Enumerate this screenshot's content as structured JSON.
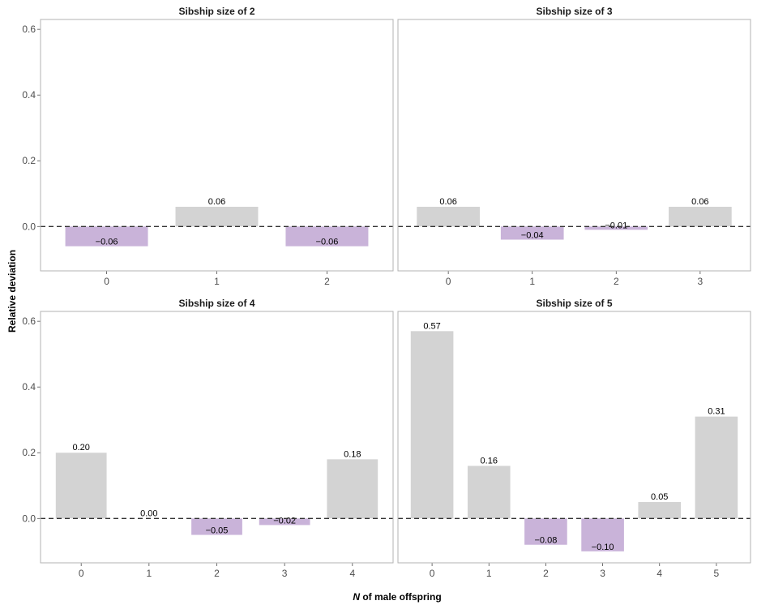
{
  "chart_data": {
    "type": "bar",
    "ylabel": "Relative deviation",
    "xlabel_prefix": "N",
    "xlabel_rest": " of male offspring",
    "ylim": [
      -0.135,
      0.63
    ],
    "yticks": [
      "0.0",
      "0.2",
      "0.4",
      "0.6"
    ],
    "ytick_values": [
      0.0,
      0.2,
      0.4,
      0.6
    ],
    "colors": {
      "positive": "#d3d3d3",
      "negative": "#c9b3d9",
      "reference": "#333333"
    },
    "panels": [
      {
        "title": "Sibship size of 2",
        "categories": [
          "0",
          "1",
          "2"
        ],
        "values": [
          -0.06,
          0.06,
          -0.06
        ],
        "labels": [
          "−0.06",
          "0.06",
          "−0.06"
        ]
      },
      {
        "title": "Sibship size of 3",
        "categories": [
          "0",
          "1",
          "2",
          "3"
        ],
        "values": [
          0.06,
          -0.04,
          -0.01,
          0.06
        ],
        "labels": [
          "0.06",
          "−0.04",
          "−0.01",
          "0.06"
        ]
      },
      {
        "title": "Sibship size of 4",
        "categories": [
          "0",
          "1",
          "2",
          "3",
          "4"
        ],
        "values": [
          0.2,
          0.0,
          -0.05,
          -0.02,
          0.18
        ],
        "labels": [
          "0.20",
          "0.00",
          "−0.05",
          "−0.02",
          "0.18"
        ]
      },
      {
        "title": "Sibship size of 5",
        "categories": [
          "0",
          "1",
          "2",
          "3",
          "4",
          "5"
        ],
        "values": [
          0.57,
          0.16,
          -0.08,
          -0.1,
          0.05,
          0.31
        ],
        "labels": [
          "0.57",
          "0.16",
          "−0.08",
          "−0.10",
          "0.05",
          "0.31"
        ]
      }
    ]
  }
}
